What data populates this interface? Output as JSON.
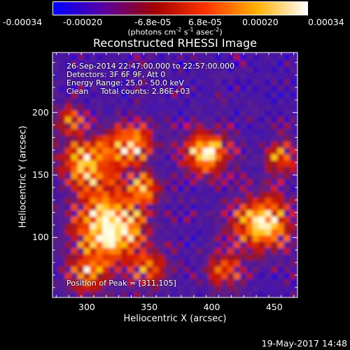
{
  "chart_data": {
    "type": "heatmap",
    "title": "Reconstructed RHESSI Image",
    "xlabel": "Heliocentric X (arcsec)",
    "ylabel": "Heliocentric Y (arcsec)",
    "xlim": [
      272,
      468
    ],
    "ylim": [
      52,
      248
    ],
    "xticks": [
      300,
      350,
      400,
      450
    ],
    "yticks": [
      100,
      150,
      200
    ],
    "colorbar": {
      "ticks": [
        "-0.00034",
        "-0.00020",
        "-6.8e-05",
        "6.8e-05",
        "0.00020",
        "0.00034"
      ],
      "unit_parts": [
        "(photons cm",
        "-2",
        " s",
        "-1",
        " asec",
        "-2",
        ")"
      ],
      "colors": [
        "#0000ff",
        "#5a00a0",
        "#a00000",
        "#ff3300",
        "#ffb000",
        "#ffffff"
      ]
    },
    "annotations": [
      "26-Sep-2014 22:47:00.000 to 22:57:00.000",
      "Detectors: 3F 6F 9F, Att 0",
      "Energy Range: 25.0 - 50.0 keV",
      "Clean     Total counts: 2.86E+03"
    ],
    "peak_label": "Position of Peak = [311,105]",
    "peak": [
      311,
      105
    ],
    "grid": false
  },
  "footer": "19-May-2017 14:48"
}
